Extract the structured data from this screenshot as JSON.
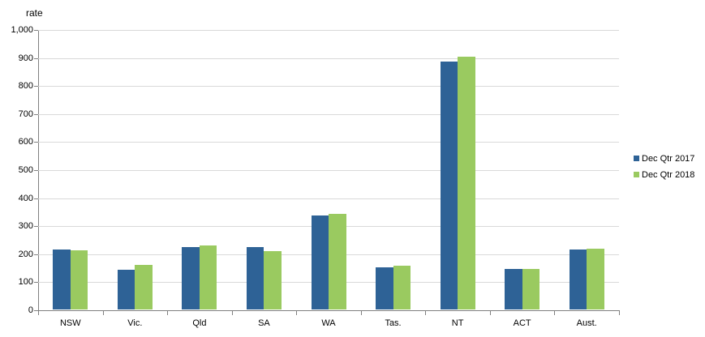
{
  "chart_data": {
    "type": "bar",
    "title": "",
    "ylabel": "rate",
    "xlabel": "",
    "categories": [
      "NSW",
      "Vic.",
      "Qld",
      "SA",
      "WA",
      "Tas.",
      "NT",
      "ACT",
      "Aust."
    ],
    "series": [
      {
        "name": "Dec Qtr 2017",
        "color": "#2E6296",
        "values": [
          215,
          143,
          224,
          222,
          334,
          151,
          885,
          145,
          214
        ]
      },
      {
        "name": "Dec Qtr 2018",
        "color": "#9ACA60",
        "values": [
          211,
          158,
          228,
          207,
          342,
          155,
          903,
          145,
          217
        ]
      }
    ],
    "ylim": [
      0,
      1000
    ],
    "ytick_interval": 100,
    "ytick_labels": [
      "0",
      "100",
      "200",
      "300",
      "400",
      "500",
      "600",
      "700",
      "800",
      "900",
      "1,000"
    ],
    "grid": true,
    "legend_position": "right"
  },
  "colors": {
    "background": "#FFFFFF",
    "gridline": "#D9D9D9",
    "axis": "#808080",
    "text": "#000000",
    "series1": "#2E6296",
    "series2": "#9ACA60"
  }
}
